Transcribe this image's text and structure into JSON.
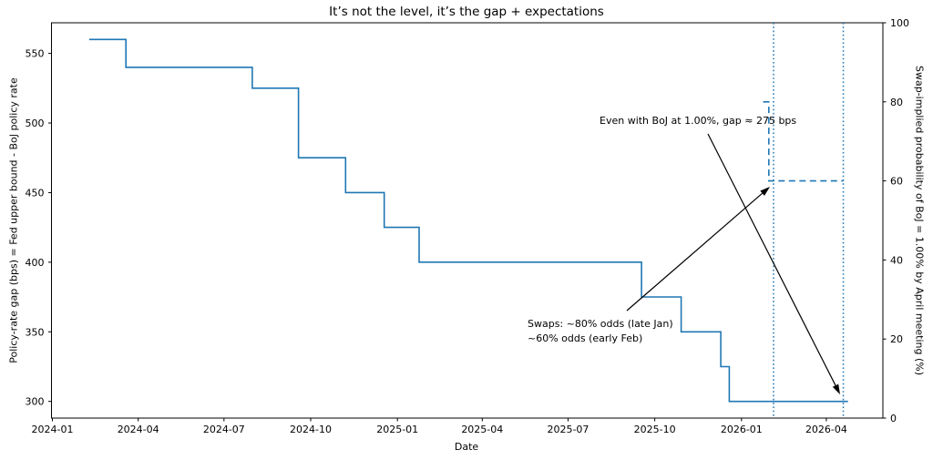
{
  "chart_data": {
    "type": "line",
    "title": "It’s not the level, it’s the gap + expectations",
    "xlabel": "Date",
    "ylabel_left": "Policy-rate gap (bps) = Fed upper bound - BoJ policy rate",
    "ylabel_right": "Swap-implied probability of BoJ = 1.00% by April meeting (%)",
    "xlim": [
      "2023-12-31",
      "2026-05-31"
    ],
    "ylim_left": [
      288,
      572
    ],
    "ylim_right": [
      0,
      100
    ],
    "grid": false,
    "legend": "none",
    "x_ticks": [
      {
        "date": "2024-01-01",
        "label": "2024-01"
      },
      {
        "date": "2024-04-01",
        "label": "2024-04"
      },
      {
        "date": "2024-07-01",
        "label": "2024-07"
      },
      {
        "date": "2024-10-01",
        "label": "2024-10"
      },
      {
        "date": "2025-01-01",
        "label": "2025-01"
      },
      {
        "date": "2025-04-01",
        "label": "2025-04"
      },
      {
        "date": "2025-07-01",
        "label": "2025-07"
      },
      {
        "date": "2025-10-01",
        "label": "2025-10"
      },
      {
        "date": "2026-01-01",
        "label": "2026-01"
      },
      {
        "date": "2026-04-01",
        "label": "2026-04"
      }
    ],
    "y_ticks_left": [
      300,
      350,
      400,
      450,
      500,
      550
    ],
    "y_ticks_right": [
      0,
      20,
      40,
      60,
      80,
      100
    ],
    "series": [
      {
        "name": "policy-rate-gap-bps",
        "axis": "left",
        "style": "solid",
        "step": "post",
        "points": [
          [
            "2024-02-09",
            560
          ],
          [
            "2024-03-19",
            540
          ],
          [
            "2024-07-31",
            525
          ],
          [
            "2024-09-18",
            475
          ],
          [
            "2024-11-07",
            450
          ],
          [
            "2024-12-18",
            425
          ],
          [
            "2025-01-24",
            400
          ],
          [
            "2025-09-17",
            375
          ],
          [
            "2025-10-29",
            350
          ],
          [
            "2025-12-10",
            325
          ],
          [
            "2025-12-19",
            300
          ],
          [
            "2026-04-24",
            300
          ]
        ]
      },
      {
        "name": "swap-implied-probability-pct",
        "axis": "right",
        "style": "dashed",
        "step": "post",
        "points": [
          [
            "2026-01-24",
            80
          ],
          [
            "2026-01-30",
            60
          ],
          [
            "2026-04-19",
            60
          ]
        ]
      }
    ],
    "vlines": [
      {
        "name": "early-feb-2026",
        "date": "2026-02-04",
        "style": "dotted"
      },
      {
        "name": "april-2026-meeting",
        "date": "2026-04-19",
        "style": "dotted"
      }
    ],
    "annotations": [
      {
        "name": "gap-note",
        "text": "Even with BoJ at 1.00%, gap ≈ 275 bps",
        "arrow": {
          "from": [
            777,
            147
          ],
          "to": [
            922,
            433
          ]
        }
      },
      {
        "name": "swaps-note",
        "text": "Swaps: ~80% odds (late Jan)\n~60% odds (early Feb)",
        "arrow": {
          "from": [
            688,
            341
          ],
          "to": [
            845,
            205
          ]
        }
      }
    ],
    "colors": {
      "line": "#1f77b4",
      "axis": "#000000",
      "text": "#000000",
      "arrow": "#000000",
      "background": "#ffffff"
    }
  }
}
